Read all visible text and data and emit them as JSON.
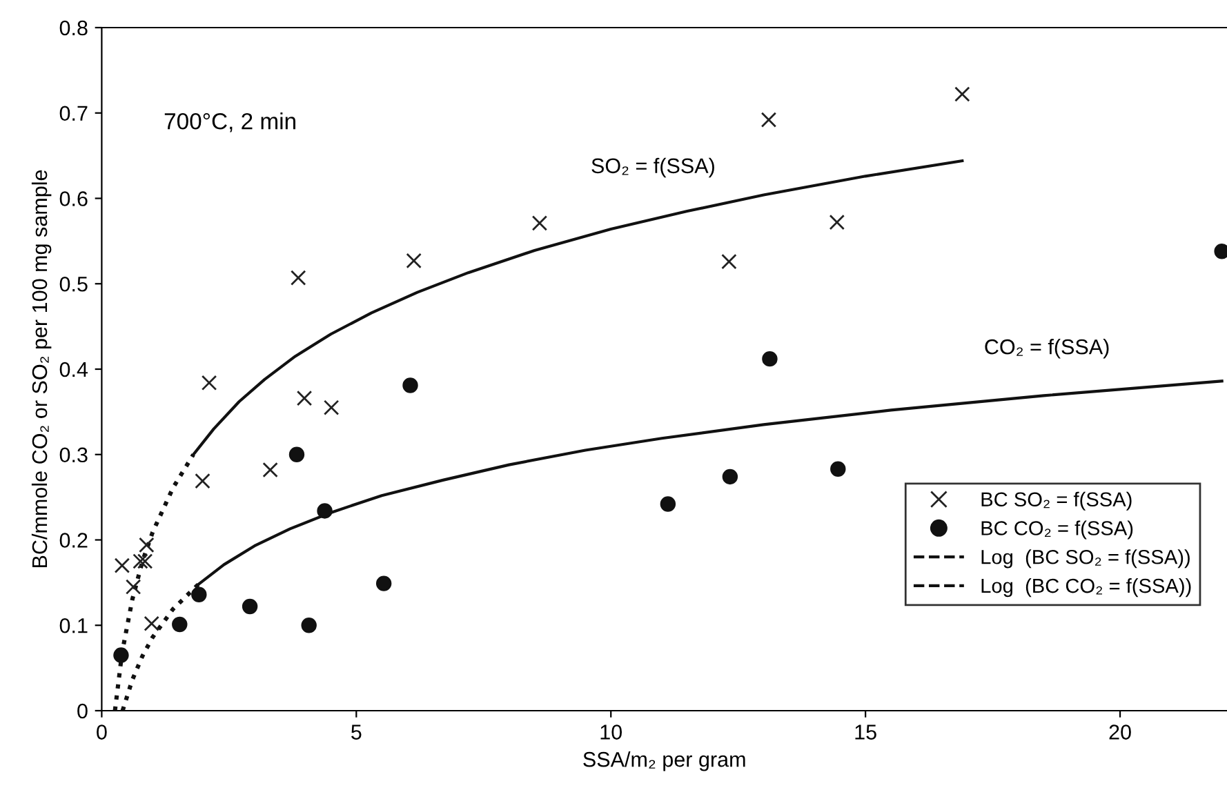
{
  "chart_data": {
    "type": "scatter",
    "xlabel": "SSA/m₂ per gram",
    "ylabel": "BC/mmole CO₂ or SO₂ per 100 mg sample",
    "xlim": [
      0,
      22.1
    ],
    "xticks": [
      0,
      5,
      10,
      15,
      20
    ],
    "ylim": [
      0,
      0.8
    ],
    "yticks": [
      0,
      0.1,
      0.2,
      0.3,
      0.4,
      0.5,
      0.6,
      0.7,
      0.8
    ],
    "grid": false,
    "legend": "lower right",
    "annotations": [
      "700°C, 2 min",
      "SO₂ = f(SSA)",
      "CO₂ = f(SSA)"
    ],
    "series": [
      {
        "name": "BC SO₂ = f(SSA)",
        "marker": "cross",
        "color": "#222222",
        "x": [
          0.4,
          0.62,
          0.76,
          0.85,
          0.88,
          0.98,
          1.98,
          2.11,
          3.31,
          3.86,
          3.98,
          4.51,
          6.13,
          8.6,
          12.32,
          13.1,
          14.44,
          16.9
        ],
        "values": [
          0.17,
          0.145,
          0.175,
          0.175,
          0.194,
          0.102,
          0.269,
          0.384,
          0.282,
          0.507,
          0.366,
          0.355,
          0.527,
          0.571,
          0.526,
          0.692,
          0.572,
          0.722
        ]
      },
      {
        "name": "BC CO₂ = f(SSA)",
        "marker": "circle",
        "color": "#111111",
        "x": [
          0.38,
          1.53,
          1.91,
          2.91,
          4.07,
          3.83,
          4.38,
          5.54,
          6.06,
          11.12,
          12.34,
          13.12,
          14.46,
          22.0
        ],
        "values": [
          0.065,
          0.101,
          0.136,
          0.122,
          0.1,
          0.3,
          0.234,
          0.149,
          0.381,
          0.242,
          0.274,
          0.412,
          0.283,
          0.538
        ]
      },
      {
        "name": "Log  (BC SO₂ = f(SSA))",
        "type": "line",
        "line_style": "dotted",
        "marker": "none",
        "color": "#111111",
        "x": [
          0.26,
          0.4,
          0.6,
          0.8,
          1.0,
          1.4,
          1.8
        ],
        "values": [
          0,
          0.068,
          0.13,
          0.175,
          0.209,
          0.261,
          0.3
        ]
      },
      {
        "name": "Log  (BC CO₂ = f(SSA))",
        "type": "line",
        "line_style": "dotted",
        "marker": "none",
        "color": "#111111",
        "x": [
          0.41,
          0.6,
          0.8,
          1.0,
          1.4,
          1.9
        ],
        "values": [
          0,
          0.036,
          0.064,
          0.086,
          0.119,
          0.148
        ]
      },
      {
        "type": "line",
        "line_style": "solid",
        "marker": "none",
        "color": "#111111",
        "x": [
          1.8,
          2.2,
          2.7,
          3.2,
          3.8,
          4.5,
          5.3,
          6.2,
          7.2,
          8.5,
          10,
          11.5,
          13,
          15,
          16.9
        ],
        "values": [
          0.3,
          0.33,
          0.362,
          0.388,
          0.415,
          0.441,
          0.466,
          0.49,
          0.513,
          0.539,
          0.564,
          0.585,
          0.604,
          0.626,
          0.644
        ]
      },
      {
        "type": "line",
        "line_style": "solid",
        "marker": "none",
        "color": "#111111",
        "x": [
          1.9,
          2.4,
          3,
          3.7,
          4.5,
          5.5,
          6.7,
          8,
          9.5,
          11,
          13,
          15.5,
          18.5,
          22
        ],
        "values": [
          0.148,
          0.171,
          0.193,
          0.213,
          0.232,
          0.252,
          0.27,
          0.288,
          0.305,
          0.319,
          0.335,
          0.352,
          0.369,
          0.386
        ]
      }
    ]
  }
}
